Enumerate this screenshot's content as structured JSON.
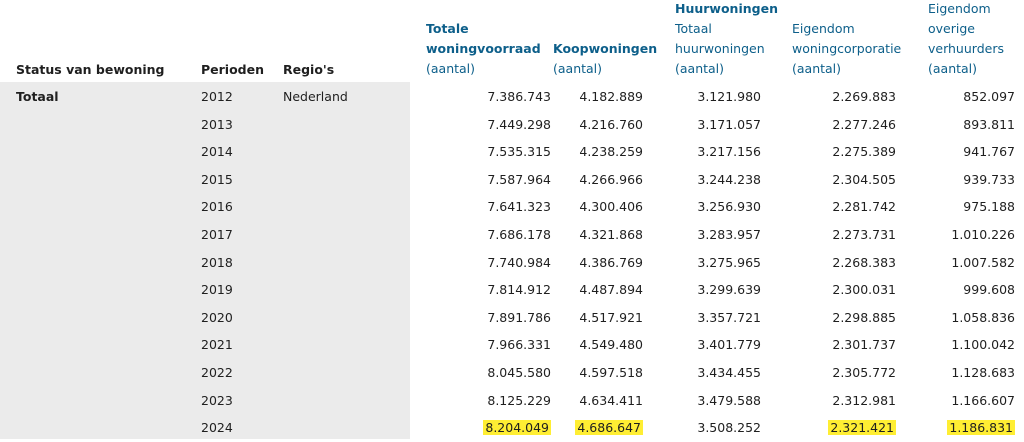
{
  "headers": {
    "status": "Status van bewoning",
    "perioden": "Perioden",
    "regios": "Regio's",
    "totale_line1": "Totale",
    "totale_line2": "woningvoorraad",
    "totale_unit": "(aantal)",
    "koop_line1": "Koopwoningen",
    "koop_unit": "(aantal)",
    "huur_group": "Huurwoningen",
    "huur_line1": "Totaal",
    "huur_line2": "huurwoningen",
    "huur_unit": "(aantal)",
    "corp_line1": "Eigendom",
    "corp_line2": "woningcorporatie",
    "corp_unit": "(aantal)",
    "overig_line1": "Eigendom",
    "overig_line2": "overige",
    "overig_line3": "verhuurders",
    "overig_unit": "(aantal)"
  },
  "status_label": "Totaal",
  "region_label": "Nederland",
  "rows": [
    {
      "jaar": "2012",
      "totaal": "7.386.743",
      "koop": "4.182.889",
      "huur": "3.121.980",
      "corp": "2.269.883",
      "overig": "852.097"
    },
    {
      "jaar": "2013",
      "totaal": "7.449.298",
      "koop": "4.216.760",
      "huur": "3.171.057",
      "corp": "2.277.246",
      "overig": "893.811"
    },
    {
      "jaar": "2014",
      "totaal": "7.535.315",
      "koop": "4.238.259",
      "huur": "3.217.156",
      "corp": "2.275.389",
      "overig": "941.767"
    },
    {
      "jaar": "2015",
      "totaal": "7.587.964",
      "koop": "4.266.966",
      "huur": "3.244.238",
      "corp": "2.304.505",
      "overig": "939.733"
    },
    {
      "jaar": "2016",
      "totaal": "7.641.323",
      "koop": "4.300.406",
      "huur": "3.256.930",
      "corp": "2.281.742",
      "overig": "975.188"
    },
    {
      "jaar": "2017",
      "totaal": "7.686.178",
      "koop": "4.321.868",
      "huur": "3.283.957",
      "corp": "2.273.731",
      "overig": "1.010.226"
    },
    {
      "jaar": "2018",
      "totaal": "7.740.984",
      "koop": "4.386.769",
      "huur": "3.275.965",
      "corp": "2.268.383",
      "overig": "1.007.582"
    },
    {
      "jaar": "2019",
      "totaal": "7.814.912",
      "koop": "4.487.894",
      "huur": "3.299.639",
      "corp": "2.300.031",
      "overig": "999.608"
    },
    {
      "jaar": "2020",
      "totaal": "7.891.786",
      "koop": "4.517.921",
      "huur": "3.357.721",
      "corp": "2.298.885",
      "overig": "1.058.836"
    },
    {
      "jaar": "2021",
      "totaal": "7.966.331",
      "koop": "4.549.480",
      "huur": "3.401.779",
      "corp": "2.301.737",
      "overig": "1.100.042"
    },
    {
      "jaar": "2022",
      "totaal": "8.045.580",
      "koop": "4.597.518",
      "huur": "3.434.455",
      "corp": "2.305.772",
      "overig": "1.128.683"
    },
    {
      "jaar": "2023",
      "totaal": "8.125.229",
      "koop": "4.634.411",
      "huur": "3.479.588",
      "corp": "2.312.981",
      "overig": "1.166.607"
    },
    {
      "jaar": "2024",
      "totaal": "8.204.049",
      "koop": "4.686.647",
      "huur": "3.508.252",
      "corp": "2.321.421",
      "overig": "1.186.831"
    }
  ],
  "highlight_color": "#ffee33"
}
